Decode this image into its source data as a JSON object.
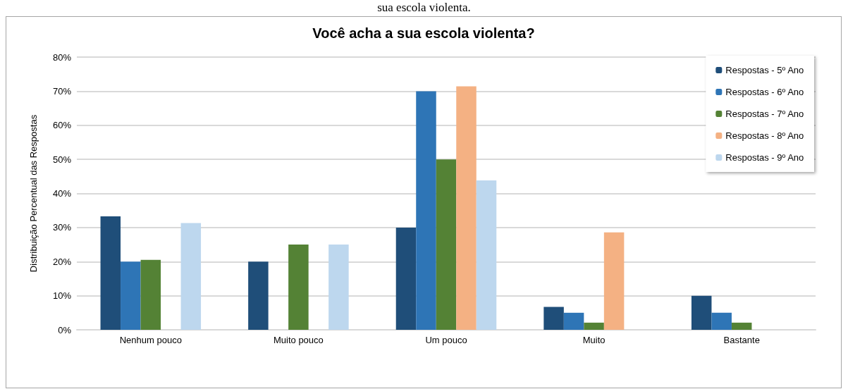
{
  "chart_data": {
    "type": "bar",
    "title": "Você acha a sua escola violenta?",
    "ylabel": "Distribuição Percentual das Respostas",
    "annotations": [
      "sua escola violenta."
    ],
    "categories": [
      "Nenhum pouco",
      "Muito pouco",
      "Um pouco",
      "Muito",
      "Bastante"
    ],
    "series": [
      {
        "name": "Respostas - 5º Ano",
        "color": "#1f4e79",
        "values": [
          33.3,
          20,
          30,
          6.7,
          10
        ]
      },
      {
        "name": "Respostas - 6º Ano",
        "color": "#2e75b6",
        "values": [
          20,
          0,
          70,
          5,
          5
        ]
      },
      {
        "name": "Respostas - 7º Ano",
        "color": "#548235",
        "values": [
          20.5,
          25,
          50,
          2.1,
          2.1
        ]
      },
      {
        "name": "Respostas - 8º Ano",
        "color": "#f4b183",
        "values": [
          0,
          0,
          71.4,
          28.6,
          0
        ]
      },
      {
        "name": "Respostas - 9º Ano",
        "color": "#bdd7ee",
        "values": [
          31.3,
          25,
          43.8,
          0,
          0
        ]
      }
    ],
    "ylim": [
      0,
      80
    ],
    "yticks": [
      {
        "value": 0,
        "label": "0%"
      },
      {
        "value": 10,
        "label": "10%"
      },
      {
        "value": 20,
        "label": "20%"
      },
      {
        "value": 30,
        "label": "30%"
      },
      {
        "value": 40,
        "label": "40%"
      },
      {
        "value": 50,
        "label": "50%"
      },
      {
        "value": 60,
        "label": "60%"
      },
      {
        "value": 70,
        "label": "70%"
      },
      {
        "value": 80,
        "label": "80%"
      }
    ],
    "grid": "y",
    "legend": "top right"
  }
}
